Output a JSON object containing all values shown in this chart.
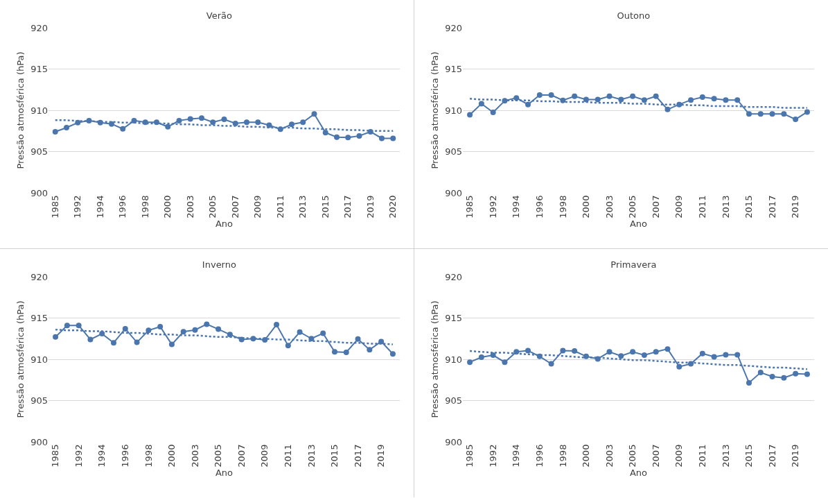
{
  "chart_data": [
    {
      "type": "line",
      "title": "Verão",
      "xlabel": "Ano",
      "ylabel": "Pressão atmosférica (hPa)",
      "categories": [
        "1985",
        null,
        "1992",
        null,
        "1994",
        null,
        "1996",
        null,
        "1998",
        null,
        "2000",
        null,
        "2003",
        null,
        "2005",
        null,
        "2007",
        null,
        "2009",
        null,
        "2011",
        null,
        "2013",
        null,
        "2015",
        null,
        "2017",
        null,
        "2019",
        null,
        "2020"
      ],
      "ylim": [
        900,
        920
      ],
      "yticks": [
        900,
        905,
        910,
        915,
        920
      ],
      "grid": "y",
      "series": [
        {
          "type": "line",
          "color": "#4a76ad",
          "marker": "circle",
          "line_style": "solid",
          "values": [
            907.4,
            907.9,
            908.5,
            908.75,
            908.5,
            908.35,
            907.75,
            908.75,
            908.55,
            908.55,
            908.0,
            908.75,
            908.95,
            909.05,
            908.55,
            908.9,
            908.4,
            908.55,
            908.55,
            908.2,
            907.7,
            908.3,
            908.55,
            909.55,
            907.3,
            906.75,
            906.7,
            906.9,
            907.4,
            906.6,
            906.6
          ]
        },
        {
          "type": "line",
          "color": "#4a76ad",
          "marker": "none",
          "line_style": "dotted",
          "values": [
            908.8,
            908.8,
            908.7,
            908.7,
            908.6,
            908.6,
            908.5,
            908.5,
            908.4,
            908.4,
            908.4,
            908.3,
            908.3,
            908.2,
            908.2,
            908.1,
            908.1,
            908.0,
            908.0,
            907.9,
            907.9,
            907.9,
            907.8,
            907.8,
            907.7,
            907.7,
            907.6,
            907.6,
            907.5,
            907.5,
            907.5
          ]
        }
      ]
    },
    {
      "type": "line",
      "title": "Outono",
      "xlabel": "Ano",
      "ylabel": "Pressão atmosférica (hPa)",
      "categories": [
        "1985",
        null,
        "1992",
        null,
        "1994",
        null,
        "1996",
        null,
        "1998",
        null,
        "2000",
        null,
        "2003",
        null,
        "2005",
        null,
        "2007",
        null,
        "2009",
        null,
        "2011",
        null,
        "2013",
        null,
        "2015",
        null,
        "2017",
        null,
        "2019",
        null
      ],
      "ylim": [
        900,
        920
      ],
      "yticks": [
        900,
        905,
        910,
        915,
        920
      ],
      "grid": "y",
      "series": [
        {
          "type": "line",
          "color": "#4a76ad",
          "marker": "circle",
          "line_style": "solid",
          "values": [
            909.45,
            910.8,
            909.75,
            911.15,
            911.5,
            910.7,
            911.85,
            911.85,
            911.2,
            911.7,
            911.3,
            911.3,
            911.7,
            911.3,
            911.7,
            911.25,
            911.7,
            910.1,
            910.7,
            911.25,
            911.6,
            911.4,
            911.25,
            911.25,
            909.55,
            909.55,
            909.55,
            909.55,
            908.9,
            909.8
          ]
        },
        {
          "type": "line",
          "color": "#4a76ad",
          "marker": "none",
          "line_style": "dotted",
          "values": [
            911.4,
            911.3,
            911.3,
            911.2,
            911.2,
            911.2,
            911.1,
            911.1,
            911.0,
            911.0,
            911.0,
            910.9,
            910.9,
            910.9,
            910.8,
            910.8,
            910.7,
            910.7,
            910.7,
            910.6,
            910.6,
            910.5,
            910.5,
            910.5,
            910.4,
            910.4,
            910.4,
            910.3,
            910.3,
            910.3
          ]
        }
      ]
    },
    {
      "type": "line",
      "title": "Inverno",
      "xlabel": "Ano",
      "ylabel": "Pressão atmosférica (hPa)",
      "categories": [
        "1985",
        null,
        "1992",
        null,
        "1994",
        null,
        "1996",
        null,
        "1998",
        null,
        "2000",
        null,
        "2003",
        null,
        "2005",
        null,
        "2007",
        null,
        "2009",
        null,
        "2011",
        null,
        "2013",
        null,
        "2015",
        null,
        "2017",
        null,
        "2019",
        null
      ],
      "ylim": [
        900,
        920
      ],
      "yticks": [
        900,
        905,
        910,
        915,
        920
      ],
      "grid": "y",
      "series": [
        {
          "type": "line",
          "color": "#4a76ad",
          "marker": "circle",
          "line_style": "solid",
          "values": [
            912.7,
            914.1,
            914.1,
            912.4,
            913.1,
            912.0,
            913.7,
            912.05,
            913.5,
            913.95,
            911.8,
            913.35,
            913.55,
            914.25,
            913.65,
            913.0,
            912.4,
            912.5,
            912.35,
            914.2,
            911.65,
            913.3,
            912.5,
            913.15,
            910.9,
            910.85,
            912.45,
            911.15,
            912.15,
            910.65
          ]
        },
        {
          "type": "line",
          "color": "#4a76ad",
          "marker": "none",
          "line_style": "dotted",
          "values": [
            913.6,
            913.5,
            913.5,
            913.4,
            913.4,
            913.3,
            913.2,
            913.2,
            913.1,
            913.0,
            913.0,
            912.9,
            912.9,
            912.8,
            912.7,
            912.7,
            912.6,
            912.5,
            912.5,
            912.4,
            912.4,
            912.3,
            912.2,
            912.2,
            912.1,
            912.0,
            912.0,
            911.9,
            911.9,
            911.8
          ]
        }
      ]
    },
    {
      "type": "line",
      "title": "Primavera",
      "xlabel": "Ano",
      "ylabel": "Pressão atmosférica (hPa)",
      "categories": [
        "1985",
        null,
        "1992",
        null,
        "1994",
        null,
        "1996",
        null,
        "1998",
        null,
        "2000",
        null,
        "2003",
        null,
        "2005",
        null,
        "2007",
        null,
        "2009",
        null,
        "2011",
        null,
        "2013",
        null,
        "2015",
        null,
        "2017",
        null,
        "2019",
        null
      ],
      "ylim": [
        900,
        920
      ],
      "yticks": [
        900,
        905,
        910,
        915,
        920
      ],
      "grid": "y",
      "series": [
        {
          "type": "line",
          "color": "#4a76ad",
          "marker": "circle",
          "line_style": "solid",
          "values": [
            909.65,
            910.25,
            910.5,
            909.65,
            910.9,
            911.05,
            910.35,
            909.45,
            911.05,
            911.0,
            910.35,
            910.05,
            910.9,
            910.4,
            910.9,
            910.5,
            910.9,
            911.25,
            909.1,
            909.45,
            910.7,
            910.3,
            910.55,
            910.55,
            907.15,
            908.4,
            907.9,
            907.75,
            908.25,
            908.2
          ]
        },
        {
          "type": "line",
          "color": "#4a76ad",
          "marker": "none",
          "line_style": "dotted",
          "values": [
            911.0,
            910.9,
            910.8,
            910.8,
            910.7,
            910.6,
            910.5,
            910.5,
            910.4,
            910.3,
            910.2,
            910.2,
            910.1,
            910.0,
            909.9,
            909.9,
            909.8,
            909.7,
            909.6,
            909.6,
            909.5,
            909.4,
            909.3,
            909.3,
            909.2,
            909.1,
            909.0,
            909.0,
            908.9,
            908.8
          ]
        }
      ]
    }
  ]
}
